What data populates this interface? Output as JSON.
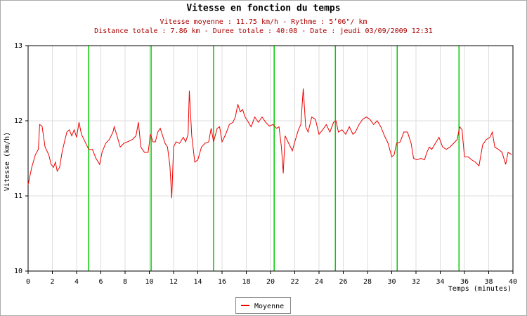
{
  "chart_data": {
    "type": "line",
    "title": "Vitesse en fonction du temps",
    "subtitle": [
      "Vitesse moyenne : 11.75 km/h - Rythme : 5’06\"/ km",
      "Distance totale : 7.86 km - Duree totale : 40:08 - Date : jeudi 03/09/2009 12:31"
    ],
    "y_label": "Vitesse (km/h)",
    "x_label": "Temps (minutes)",
    "xlim": [
      0,
      40
    ],
    "xticks": [
      0,
      2,
      4,
      6,
      8,
      10,
      12,
      14,
      16,
      18,
      20,
      22,
      24,
      26,
      28,
      30,
      32,
      34,
      36,
      38,
      40
    ],
    "ylim": [
      10,
      13
    ],
    "yticks": [
      10,
      11,
      12,
      13
    ],
    "grid": true,
    "markers": {
      "color": "#00cc00",
      "x": [
        5.0,
        10.15,
        15.3,
        20.3,
        25.35,
        30.45,
        35.55
      ]
    },
    "series": [
      {
        "name": "Moyenne",
        "color": "#ee0000",
        "x": [
          0,
          0.3,
          0.6,
          0.85,
          0.95,
          1.15,
          1.4,
          1.7,
          1.9,
          2.1,
          2.25,
          2.4,
          2.6,
          2.8,
          3.0,
          3.2,
          3.4,
          3.6,
          3.8,
          4.0,
          4.2,
          4.4,
          4.7,
          5.0,
          5.3,
          5.6,
          5.9,
          6.1,
          6.4,
          6.7,
          7.0,
          7.1,
          7.3,
          7.6,
          7.9,
          8.2,
          8.6,
          8.9,
          9.1,
          9.3,
          9.6,
          9.9,
          10.1,
          10.3,
          10.5,
          10.7,
          10.9,
          11.1,
          11.3,
          11.5,
          11.7,
          11.85,
          12.0,
          12.2,
          12.5,
          12.8,
          13.0,
          13.2,
          13.3,
          13.5,
          13.75,
          14.0,
          14.3,
          14.6,
          14.9,
          15.1,
          15.3,
          15.6,
          15.8,
          16.0,
          16.3,
          16.6,
          16.9,
          17.1,
          17.3,
          17.5,
          17.7,
          17.9,
          18.1,
          18.4,
          18.7,
          19.0,
          19.3,
          19.6,
          19.9,
          20.2,
          20.5,
          20.7,
          20.9,
          21.05,
          21.2,
          21.5,
          21.8,
          22.0,
          22.3,
          22.5,
          22.7,
          22.9,
          23.1,
          23.4,
          23.7,
          24.0,
          24.3,
          24.6,
          24.9,
          25.2,
          25.4,
          25.6,
          25.9,
          26.2,
          26.5,
          26.8,
          27.0,
          27.3,
          27.6,
          27.9,
          28.2,
          28.5,
          28.8,
          29.1,
          29.4,
          29.7,
          30.0,
          30.2,
          30.4,
          30.7,
          31.0,
          31.3,
          31.6,
          31.8,
          32.1,
          32.4,
          32.7,
          32.9,
          33.1,
          33.3,
          33.6,
          33.9,
          34.2,
          34.5,
          34.8,
          35.1,
          35.4,
          35.6,
          35.8,
          36.0,
          36.3,
          36.6,
          36.9,
          37.2,
          37.5,
          37.8,
          38.1,
          38.3,
          38.5,
          38.8,
          39.1,
          39.4,
          39.6,
          39.9
        ],
        "values": [
          11.15,
          11.38,
          11.55,
          11.62,
          11.95,
          11.93,
          11.65,
          11.55,
          11.42,
          11.38,
          11.45,
          11.33,
          11.38,
          11.58,
          11.72,
          11.85,
          11.88,
          11.8,
          11.88,
          11.78,
          11.98,
          11.82,
          11.72,
          11.62,
          11.62,
          11.5,
          11.42,
          11.58,
          11.7,
          11.75,
          11.85,
          11.92,
          11.82,
          11.65,
          11.7,
          11.72,
          11.75,
          11.8,
          11.98,
          11.65,
          11.58,
          11.58,
          11.82,
          11.72,
          11.72,
          11.85,
          11.9,
          11.8,
          11.7,
          11.65,
          11.4,
          10.97,
          11.65,
          11.72,
          11.7,
          11.78,
          11.72,
          11.82,
          12.4,
          11.8,
          11.45,
          11.48,
          11.65,
          11.7,
          11.72,
          11.9,
          11.72,
          11.9,
          11.92,
          11.72,
          11.82,
          11.95,
          11.98,
          12.05,
          12.22,
          12.12,
          12.15,
          12.05,
          12.0,
          11.92,
          12.05,
          11.98,
          12.05,
          11.98,
          11.93,
          11.95,
          11.9,
          11.92,
          11.65,
          11.3,
          11.8,
          11.7,
          11.6,
          11.72,
          11.88,
          11.95,
          12.43,
          11.92,
          11.85,
          12.05,
          12.02,
          11.82,
          11.88,
          11.95,
          11.85,
          11.98,
          12.0,
          11.85,
          11.88,
          11.82,
          11.92,
          11.82,
          11.85,
          11.95,
          12.02,
          12.05,
          12.02,
          11.95,
          12.0,
          11.92,
          11.8,
          11.7,
          11.52,
          11.55,
          11.7,
          11.72,
          11.85,
          11.85,
          11.7,
          11.5,
          11.48,
          11.5,
          11.48,
          11.58,
          11.65,
          11.62,
          11.7,
          11.78,
          11.65,
          11.62,
          11.65,
          11.7,
          11.75,
          11.92,
          11.88,
          11.52,
          11.52,
          11.48,
          11.45,
          11.4,
          11.68,
          11.75,
          11.78,
          11.85,
          11.65,
          11.62,
          11.58,
          11.42,
          11.58,
          11.55
        ]
      }
    ]
  }
}
